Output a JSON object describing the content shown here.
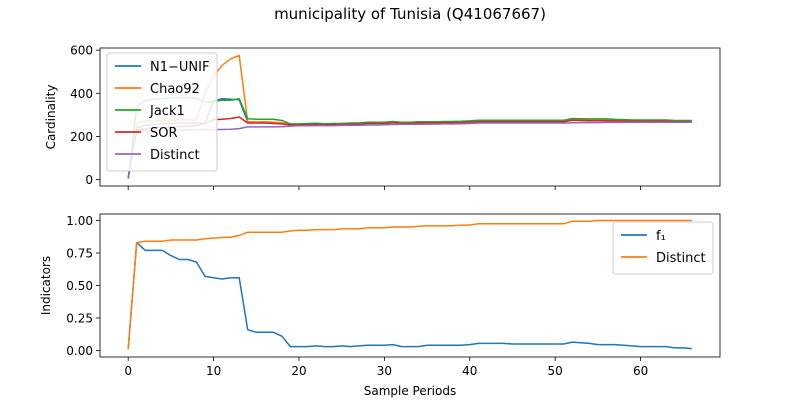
{
  "figure": {
    "title": "municipality of Tunisia (Q41067667)"
  },
  "chart_data": [
    {
      "type": "line",
      "ylabel": "Cardinality",
      "xlabel": "",
      "xlim": [
        -3.3,
        69.3
      ],
      "ylim": [
        -30,
        610
      ],
      "xticks": [
        0,
        10,
        20,
        30,
        40,
        50,
        60
      ],
      "yticks": [
        0,
        200,
        400,
        600
      ],
      "xticklabels_visible": false,
      "legend_position": "upper-left",
      "grid": false,
      "series": [
        {
          "name": "N1−UNIF",
          "color": "#1f77b4",
          "x": [
            0,
            1,
            2,
            3,
            4,
            5,
            6,
            7,
            8,
            9,
            10,
            11,
            12,
            13,
            14,
            15,
            16,
            17,
            18,
            19,
            20,
            21,
            22,
            23,
            24,
            25,
            26,
            27,
            28,
            29,
            30,
            31,
            32,
            33,
            34,
            35,
            36,
            37,
            38,
            39,
            40,
            41,
            42,
            43,
            44,
            45,
            46,
            47,
            48,
            49,
            50,
            51,
            52,
            53,
            54,
            55,
            56,
            57,
            58,
            59,
            60,
            61,
            62,
            63,
            64,
            65,
            66
          ],
          "y": [
            5,
            240,
            250,
            255,
            258,
            260,
            262,
            262,
            262,
            262,
            365,
            375,
            372,
            370,
            268,
            266,
            266,
            265,
            262,
            254,
            254,
            256,
            257,
            255,
            256,
            256,
            258,
            258,
            262,
            262,
            262,
            265,
            262,
            262,
            264,
            264,
            264,
            265,
            265,
            266,
            268,
            270,
            270,
            270,
            270,
            270,
            270,
            270,
            270,
            270,
            270,
            270,
            278,
            277,
            276,
            276,
            276,
            275,
            274,
            272,
            272,
            272,
            272,
            272,
            270,
            270,
            270
          ]
        },
        {
          "name": "Chao92",
          "color": "#ff7f0e",
          "x": [
            0,
            1,
            2,
            3,
            4,
            5,
            6,
            7,
            8,
            9,
            10,
            11,
            12,
            13,
            14,
            15,
            16,
            17,
            18,
            19,
            20,
            21,
            22,
            23,
            24,
            25,
            26,
            27,
            28,
            29,
            30,
            31,
            32,
            33,
            34,
            35,
            36,
            37,
            38,
            39,
            40,
            41,
            42,
            43,
            44,
            45,
            46,
            47,
            48,
            49,
            50,
            51,
            52,
            53,
            54,
            55,
            56,
            57,
            58,
            59,
            60,
            61,
            62,
            63,
            64,
            65,
            66
          ],
          "y": [
            5,
            260,
            270,
            272,
            272,
            274,
            276,
            278,
            275,
            400,
            478,
            530,
            560,
            575,
            268,
            267,
            268,
            266,
            263,
            255,
            255,
            257,
            258,
            257,
            258,
            258,
            259,
            260,
            263,
            263,
            263,
            267,
            264,
            264,
            266,
            266,
            266,
            267,
            267,
            267,
            269,
            272,
            272,
            272,
            272,
            272,
            272,
            272,
            272,
            272,
            272,
            272,
            280,
            279,
            278,
            278,
            278,
            276,
            275,
            273,
            273,
            273,
            273,
            273,
            271,
            271,
            271
          ]
        },
        {
          "name": "Jack1",
          "color": "#2ca02c",
          "x": [
            0,
            1,
            2,
            3,
            4,
            5,
            6,
            7,
            8,
            9,
            10,
            11,
            12,
            13,
            14,
            15,
            16,
            17,
            18,
            19,
            20,
            21,
            22,
            23,
            24,
            25,
            26,
            27,
            28,
            29,
            30,
            31,
            32,
            33,
            34,
            35,
            36,
            37,
            38,
            39,
            40,
            41,
            42,
            43,
            44,
            45,
            46,
            47,
            48,
            49,
            50,
            51,
            52,
            53,
            54,
            55,
            56,
            57,
            58,
            59,
            60,
            61,
            62,
            63,
            64,
            65,
            66
          ],
          "y": [
            5,
            340,
            365,
            372,
            376,
            378,
            380,
            380,
            375,
            360,
            362,
            368,
            368,
            375,
            282,
            280,
            280,
            280,
            274,
            258,
            258,
            260,
            261,
            259,
            260,
            260,
            262,
            262,
            266,
            266,
            266,
            269,
            266,
            266,
            268,
            268,
            268,
            269,
            269,
            270,
            272,
            275,
            275,
            275,
            275,
            275,
            275,
            275,
            275,
            275,
            275,
            275,
            283,
            282,
            281,
            281,
            281,
            279,
            278,
            276,
            276,
            276,
            276,
            276,
            274,
            274,
            274
          ]
        },
        {
          "name": "SOR",
          "color": "#d62728",
          "x": [
            0,
            1,
            2,
            3,
            4,
            5,
            6,
            7,
            8,
            9,
            10,
            11,
            12,
            13,
            14,
            15,
            16,
            17,
            18,
            19,
            20,
            21,
            22,
            23,
            24,
            25,
            26,
            27,
            28,
            29,
            30,
            31,
            32,
            33,
            34,
            35,
            36,
            37,
            38,
            39,
            40,
            41,
            42,
            43,
            44,
            45,
            46,
            47,
            48,
            49,
            50,
            51,
            52,
            53,
            54,
            55,
            56,
            57,
            58,
            59,
            60,
            61,
            62,
            63,
            64,
            65,
            66
          ],
          "y": [
            5,
            230,
            236,
            240,
            242,
            244,
            246,
            248,
            250,
            260,
            278,
            280,
            283,
            290,
            262,
            262,
            262,
            260,
            258,
            253,
            253,
            254,
            255,
            254,
            255,
            255,
            256,
            256,
            260,
            260,
            260,
            263,
            260,
            260,
            262,
            262,
            262,
            263,
            263,
            264,
            266,
            268,
            268,
            268,
            268,
            268,
            268,
            268,
            268,
            268,
            268,
            268,
            275,
            274,
            273,
            273,
            273,
            272,
            271,
            270,
            270,
            270,
            270,
            270,
            268,
            268,
            268
          ]
        },
        {
          "name": "Distinct",
          "color": "#9467bd",
          "x": [
            0,
            1,
            2,
            3,
            4,
            5,
            6,
            7,
            8,
            9,
            10,
            11,
            12,
            13,
            14,
            15,
            16,
            17,
            18,
            19,
            20,
            21,
            22,
            23,
            24,
            25,
            26,
            27,
            28,
            29,
            30,
            31,
            32,
            33,
            34,
            35,
            36,
            37,
            38,
            39,
            40,
            41,
            42,
            43,
            44,
            45,
            46,
            47,
            48,
            49,
            50,
            51,
            52,
            53,
            54,
            55,
            56,
            57,
            58,
            59,
            60,
            61,
            62,
            63,
            64,
            65,
            66
          ],
          "y": [
            5,
            225,
            227,
            228,
            228,
            229,
            229,
            230,
            230,
            231,
            232,
            232,
            233,
            236,
            244,
            244,
            244,
            244,
            245,
            248,
            249,
            249,
            250,
            250,
            250,
            251,
            252,
            252,
            253,
            253,
            254,
            255,
            256,
            256,
            256,
            257,
            257,
            258,
            258,
            259,
            260,
            262,
            262,
            262,
            262,
            262,
            262,
            262,
            262,
            262,
            262,
            262,
            263,
            264,
            264,
            264,
            265,
            265,
            265,
            265,
            266,
            266,
            266,
            266,
            266,
            266,
            266
          ]
        }
      ]
    },
    {
      "type": "line",
      "ylabel": "Indicators",
      "xlabel": "Sample Periods",
      "xlim": [
        -3.3,
        69.3
      ],
      "ylim": [
        -0.05,
        1.05
      ],
      "xticks": [
        0,
        10,
        20,
        30,
        40,
        50,
        60
      ],
      "yticks": [
        0.0,
        0.25,
        0.5,
        0.75,
        1.0
      ],
      "xticklabels": [
        "0",
        "10",
        "20",
        "30",
        "40",
        "50",
        "60"
      ],
      "yticklabels": [
        "0.00",
        "0.25",
        "0.50",
        "0.75",
        "1.00"
      ],
      "legend_position": "upper-right",
      "grid": false,
      "series": [
        {
          "name": "f₁",
          "color": "#1f77b4",
          "x": [
            0,
            1,
            2,
            3,
            4,
            5,
            6,
            7,
            8,
            9,
            10,
            11,
            12,
            13,
            14,
            15,
            16,
            17,
            18,
            19,
            20,
            21,
            22,
            23,
            24,
            25,
            26,
            27,
            28,
            29,
            30,
            31,
            32,
            33,
            34,
            35,
            36,
            37,
            38,
            39,
            40,
            41,
            42,
            43,
            44,
            45,
            46,
            47,
            48,
            49,
            50,
            51,
            52,
            53,
            54,
            55,
            56,
            57,
            58,
            59,
            60,
            61,
            62,
            63,
            64,
            65,
            66
          ],
          "y": [
            0.01,
            0.83,
            0.77,
            0.77,
            0.77,
            0.73,
            0.7,
            0.7,
            0.68,
            0.57,
            0.56,
            0.55,
            0.56,
            0.56,
            0.16,
            0.14,
            0.14,
            0.14,
            0.11,
            0.03,
            0.03,
            0.03,
            0.035,
            0.03,
            0.03,
            0.035,
            0.03,
            0.035,
            0.04,
            0.04,
            0.04,
            0.045,
            0.03,
            0.03,
            0.03,
            0.04,
            0.04,
            0.04,
            0.04,
            0.04,
            0.045,
            0.055,
            0.055,
            0.055,
            0.055,
            0.05,
            0.05,
            0.05,
            0.05,
            0.05,
            0.05,
            0.05,
            0.065,
            0.06,
            0.055,
            0.045,
            0.045,
            0.045,
            0.04,
            0.035,
            0.03,
            0.03,
            0.03,
            0.03,
            0.02,
            0.02,
            0.015
          ]
        },
        {
          "name": "Distinct",
          "color": "#ff7f0e",
          "x": [
            0,
            1,
            2,
            3,
            4,
            5,
            6,
            7,
            8,
            9,
            10,
            11,
            12,
            13,
            14,
            15,
            16,
            17,
            18,
            19,
            20,
            21,
            22,
            23,
            24,
            25,
            26,
            27,
            28,
            29,
            30,
            31,
            32,
            33,
            34,
            35,
            36,
            37,
            38,
            39,
            40,
            41,
            42,
            43,
            44,
            45,
            46,
            47,
            48,
            49,
            50,
            51,
            52,
            53,
            54,
            55,
            56,
            57,
            58,
            59,
            60,
            61,
            62,
            63,
            64,
            65,
            66
          ],
          "y": [
            0.01,
            0.83,
            0.84,
            0.84,
            0.84,
            0.85,
            0.85,
            0.85,
            0.85,
            0.86,
            0.865,
            0.87,
            0.87,
            0.885,
            0.91,
            0.91,
            0.91,
            0.91,
            0.91,
            0.92,
            0.925,
            0.925,
            0.93,
            0.93,
            0.93,
            0.935,
            0.935,
            0.935,
            0.945,
            0.945,
            0.945,
            0.95,
            0.95,
            0.95,
            0.955,
            0.96,
            0.96,
            0.96,
            0.96,
            0.965,
            0.965,
            0.975,
            0.975,
            0.975,
            0.975,
            0.975,
            0.975,
            0.975,
            0.975,
            0.975,
            0.975,
            0.975,
            0.995,
            0.995,
            0.995,
            1.0,
            1.0,
            1.0,
            1.0,
            1.0,
            1.0,
            1.0,
            1.0,
            1.0,
            1.0,
            1.0,
            1.0
          ]
        }
      ]
    }
  ]
}
